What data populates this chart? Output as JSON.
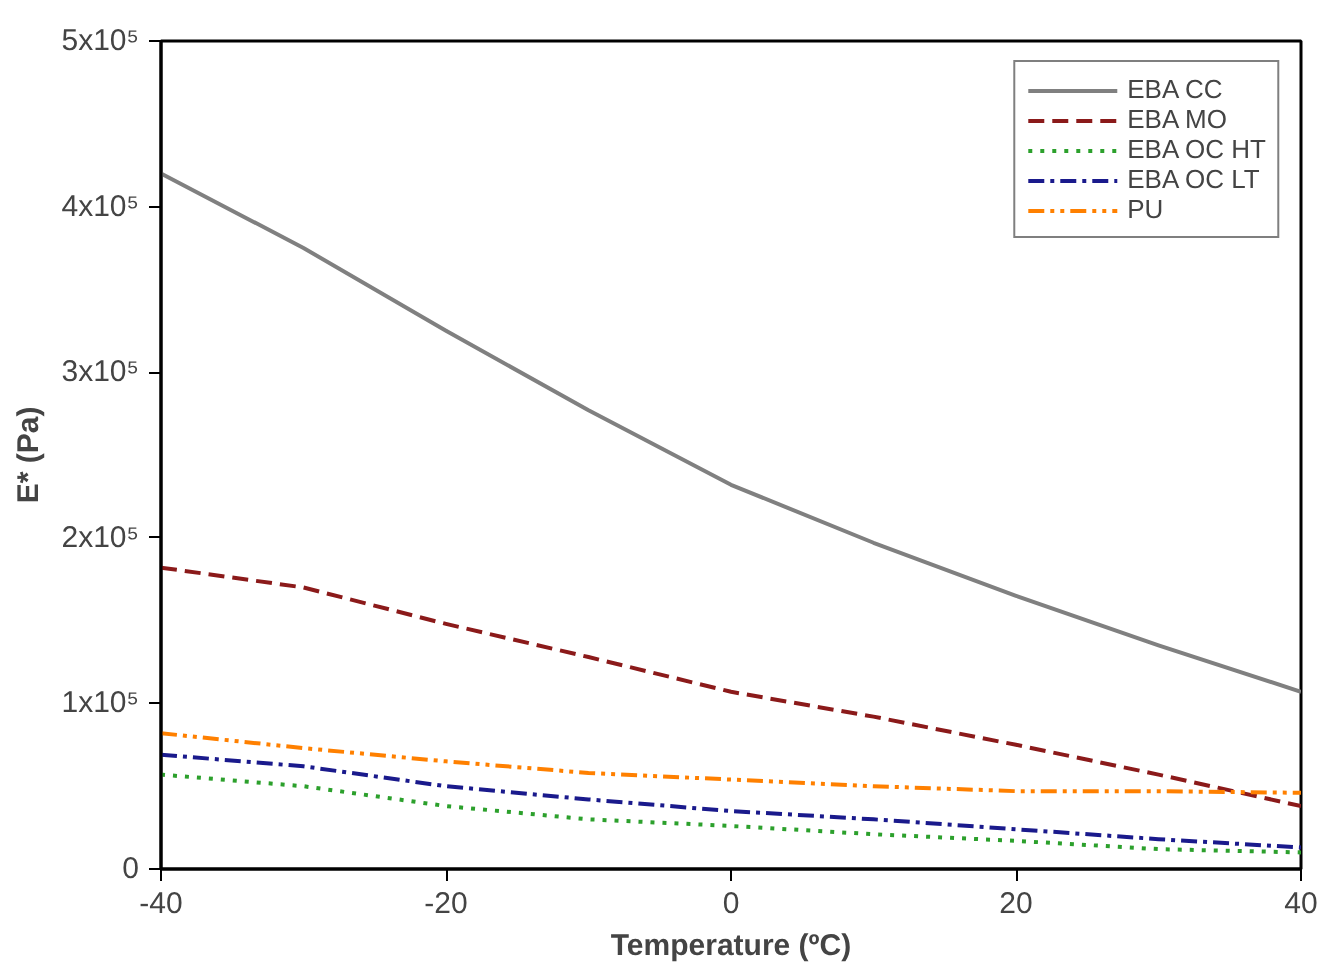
{
  "chart_data": {
    "type": "line",
    "xlabel": "Temperature (ºC)",
    "ylabel": "E* (Pa)",
    "x": [
      -40,
      -30,
      -20,
      -10,
      0,
      10,
      20,
      30,
      40
    ],
    "xlim": [
      -40,
      40
    ],
    "xticks": [
      -40,
      -20,
      0,
      20,
      40
    ],
    "ylim": [
      0,
      500000
    ],
    "yticks": [
      {
        "value": 0,
        "label": "0"
      },
      {
        "value": 100000,
        "label": "1x10⁵"
      },
      {
        "value": 200000,
        "label": "2x10⁵"
      },
      {
        "value": 300000,
        "label": "3x10⁵"
      },
      {
        "value": 400000,
        "label": "4x10⁵"
      },
      {
        "value": 500000,
        "label": "5x10⁵"
      }
    ],
    "grid": false,
    "legend": "top right",
    "marker": "none",
    "series": [
      {
        "name": "EBA CC",
        "color": "#808080",
        "line_style": "solid",
        "values": [
          420000,
          375000,
          325000,
          277000,
          232000,
          197000,
          165000,
          135000,
          107000
        ]
      },
      {
        "name": "EBA MO",
        "color": "#8b1a1a",
        "line_style": "dashed",
        "values": [
          182000,
          170000,
          148000,
          128000,
          107000,
          92000,
          75000,
          57000,
          38000
        ]
      },
      {
        "name": "EBA OC HT",
        "color": "#2ca02c",
        "line_style": "dotted",
        "values": [
          57000,
          50000,
          38000,
          30000,
          26000,
          21000,
          17000,
          12000,
          10000
        ]
      },
      {
        "name": "EBA OC LT",
        "color": "#1a1a8c",
        "line_style": "dashdot",
        "values": [
          69000,
          62000,
          50000,
          42000,
          35000,
          30000,
          24000,
          18000,
          13000
        ]
      },
      {
        "name": "PU",
        "color": "#ff8000",
        "line_style": "dashdotdot",
        "values": [
          82000,
          73000,
          65000,
          58000,
          54000,
          50000,
          47000,
          47000,
          46000
        ]
      }
    ]
  }
}
